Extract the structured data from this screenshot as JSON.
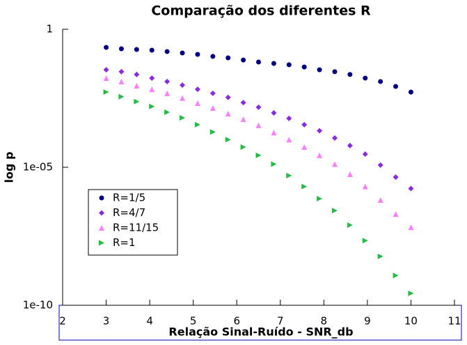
{
  "chart_data": {
    "type": "scatter",
    "title": "Comparação dos diferentes R",
    "xlabel": "Relação Sinal-Ruído - SNR_db",
    "ylabel": "log p",
    "x": [
      3,
      3.35,
      3.7,
      4.05,
      4.4,
      4.75,
      5.1,
      5.45,
      5.8,
      6.15,
      6.5,
      6.85,
      7.2,
      7.55,
      7.9,
      8.25,
      8.6,
      8.95,
      9.3,
      9.65,
      10
    ],
    "series": [
      {
        "name": "R=1/5",
        "color": "#000080",
        "marker": "circle",
        "values": [
          0.22,
          0.196,
          0.185,
          0.175,
          0.156,
          0.138,
          0.123,
          0.104,
          0.092,
          0.077,
          0.065,
          0.058,
          0.052,
          0.043,
          0.034,
          0.029,
          0.023,
          0.017,
          0.0128,
          0.0085,
          0.0053
        ]
      },
      {
        "name": "R=4/7",
        "color": "#8a2be2",
        "marker": "diamond",
        "values": [
          0.034,
          0.029,
          0.023,
          0.017,
          0.0128,
          0.0095,
          0.0067,
          0.0048,
          0.0034,
          0.0022,
          0.0015,
          0.00093,
          0.00059,
          0.00035,
          0.00021,
          0.000115,
          6.1e-05,
          3e-05,
          1.2e-05,
          4.4e-06,
          1.7e-06
        ]
      },
      {
        "name": "R=11/15",
        "color": "#ff80ff",
        "marker": "triangle-up",
        "values": [
          0.017,
          0.0128,
          0.009,
          0.0067,
          0.0048,
          0.0032,
          0.0021,
          0.0014,
          0.00088,
          0.00055,
          0.00033,
          0.00018,
          0.0001,
          5.4e-05,
          2.7e-05,
          1.3e-05,
          5.6e-06,
          2e-06,
          6.5e-07,
          2e-07,
          6.7e-08
        ]
      },
      {
        "name": "R=1",
        "color": "#22bb44",
        "marker": "triangle-right",
        "values": [
          0.0053,
          0.0036,
          0.0024,
          0.0016,
          0.00099,
          0.00062,
          0.00035,
          0.00019,
          0.0001,
          5.4e-05,
          2.7e-05,
          1.3e-05,
          5e-06,
          2e-06,
          7.3e-07,
          2.7e-07,
          8e-08,
          2.2e-08,
          5.9e-09,
          1.2e-09,
          2.7e-10
        ]
      }
    ],
    "xlim": [
      2,
      11
    ],
    "xticks": [
      2,
      3,
      4,
      5,
      6,
      7,
      8,
      9,
      10,
      11
    ],
    "ylim": [
      1e-10,
      1
    ],
    "yticks": [
      1,
      {
        "value": 1e-05,
        "label": "1e-05"
      },
      {
        "value": 1e-10,
        "label": "1e-10"
      }
    ],
    "ylog": true,
    "legend": "lower-left"
  }
}
